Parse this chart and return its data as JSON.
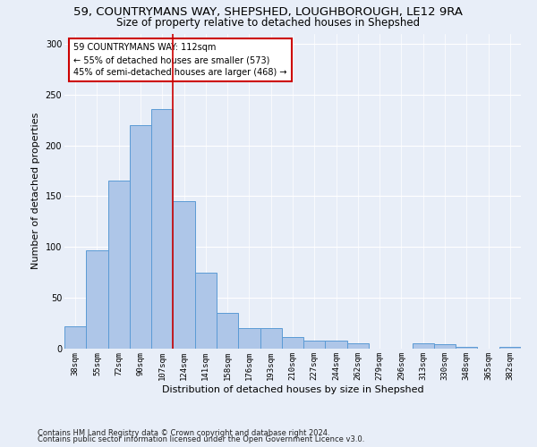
{
  "title1": "59, COUNTRYMANS WAY, SHEPSHED, LOUGHBOROUGH, LE12 9RA",
  "title2": "Size of property relative to detached houses in Shepshed",
  "xlabel": "Distribution of detached houses by size in Shepshed",
  "ylabel": "Number of detached properties",
  "categories": [
    "38sqm",
    "55sqm",
    "72sqm",
    "90sqm",
    "107sqm",
    "124sqm",
    "141sqm",
    "158sqm",
    "176sqm",
    "193sqm",
    "210sqm",
    "227sqm",
    "244sqm",
    "262sqm",
    "279sqm",
    "296sqm",
    "313sqm",
    "330sqm",
    "348sqm",
    "365sqm",
    "382sqm"
  ],
  "values": [
    22,
    97,
    165,
    220,
    236,
    145,
    75,
    35,
    20,
    20,
    11,
    8,
    8,
    5,
    0,
    0,
    5,
    4,
    2,
    0,
    2
  ],
  "bar_color": "#aec6e8",
  "bar_edge_color": "#5b9bd5",
  "ylim": [
    0,
    310
  ],
  "yticks": [
    0,
    50,
    100,
    150,
    200,
    250,
    300
  ],
  "vline_x": 4.5,
  "vline_color": "#cc0000",
  "annotation_text": "59 COUNTRYMANS WAY: 112sqm\n← 55% of detached houses are smaller (573)\n45% of semi-detached houses are larger (468) →",
  "annotation_box_color": "#ffffff",
  "annotation_box_edge": "#cc0000",
  "footer1": "Contains HM Land Registry data © Crown copyright and database right 2024.",
  "footer2": "Contains public sector information licensed under the Open Government Licence v3.0.",
  "bg_color": "#e8eef8",
  "grid_color": "#ffffff",
  "title1_fontsize": 9.5,
  "title2_fontsize": 8.5,
  "xlabel_fontsize": 8,
  "ylabel_fontsize": 8,
  "tick_fontsize": 6.5,
  "footer_fontsize": 6
}
